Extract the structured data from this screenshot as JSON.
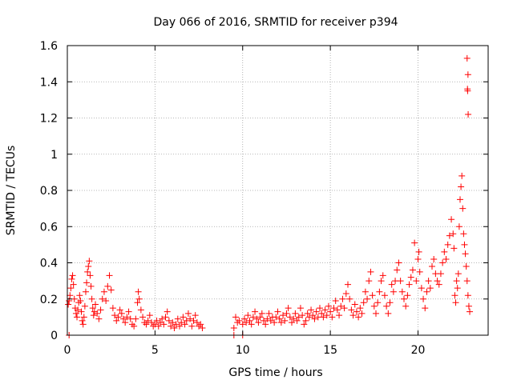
{
  "chart_data": {
    "type": "scatter",
    "title": "Day 066 of 2016, SRMTID for receiver p394",
    "xlabel": "GPS time / hours",
    "ylabel": "SRMTID / TECUs",
    "xlim": [
      0,
      24
    ],
    "ylim": [
      0,
      1.6
    ],
    "xticks": [
      0,
      5,
      10,
      15,
      20
    ],
    "yticks": [
      0,
      0.2,
      0.4,
      0.6,
      0.8,
      1,
      1.2,
      1.4,
      1.6
    ],
    "xtick_labels": [
      "0",
      "5",
      "10",
      "15",
      "20"
    ],
    "ytick_labels": [
      "0",
      "0.2",
      "0.4",
      "0.6",
      "0.8",
      "1",
      "1.2",
      "1.4",
      "1.6"
    ],
    "grid": true,
    "marker": "+",
    "color": "#ff0000",
    "series": [
      {
        "name": "SRMTID",
        "points": [
          [
            0.05,
            0.17
          ],
          [
            0.1,
            0.19
          ],
          [
            0.15,
            0.22
          ],
          [
            0.2,
            0.26
          ],
          [
            0.25,
            0.31
          ],
          [
            0.3,
            0.33
          ],
          [
            0.35,
            0.28
          ],
          [
            0.4,
            0.2
          ],
          [
            0.45,
            0.15
          ],
          [
            0.5,
            0.12
          ],
          [
            0.55,
            0.1
          ],
          [
            0.6,
            0.14
          ],
          [
            0.65,
            0.18
          ],
          [
            0.7,
            0.22
          ],
          [
            0.75,
            0.19
          ],
          [
            0.8,
            0.13
          ],
          [
            0.85,
            0.08
          ],
          [
            0.9,
            0.06
          ],
          [
            0.95,
            0.1
          ],
          [
            1.0,
            0.16
          ],
          [
            1.05,
            0.24
          ],
          [
            1.1,
            0.29
          ],
          [
            1.15,
            0.35
          ],
          [
            1.2,
            0.38
          ],
          [
            1.25,
            0.41
          ],
          [
            1.3,
            0.33
          ],
          [
            1.35,
            0.27
          ],
          [
            1.4,
            0.2
          ],
          [
            1.45,
            0.15
          ],
          [
            1.5,
            0.11
          ],
          [
            1.55,
            0.13
          ],
          [
            1.6,
            0.17
          ],
          [
            1.7,
            0.12
          ],
          [
            1.8,
            0.09
          ],
          [
            1.9,
            0.14
          ],
          [
            2.0,
            0.2
          ],
          [
            2.1,
            0.24
          ],
          [
            2.2,
            0.19
          ],
          [
            2.3,
            0.27
          ],
          [
            2.4,
            0.33
          ],
          [
            2.5,
            0.25
          ],
          [
            2.6,
            0.15
          ],
          [
            2.7,
            0.11
          ],
          [
            2.8,
            0.08
          ],
          [
            2.9,
            0.1
          ],
          [
            3.0,
            0.14
          ],
          [
            3.1,
            0.12
          ],
          [
            3.2,
            0.09
          ],
          [
            3.3,
            0.07
          ],
          [
            3.4,
            0.1
          ],
          [
            3.5,
            0.13
          ],
          [
            3.6,
            0.09
          ],
          [
            3.7,
            0.06
          ],
          [
            3.8,
            0.05
          ],
          [
            3.9,
            0.09
          ],
          [
            4.0,
            0.18
          ],
          [
            4.05,
            0.24
          ],
          [
            4.1,
            0.2
          ],
          [
            4.2,
            0.14
          ],
          [
            4.3,
            0.1
          ],
          [
            4.4,
            0.07
          ],
          [
            4.5,
            0.06
          ],
          [
            4.6,
            0.08
          ],
          [
            4.7,
            0.11
          ],
          [
            4.8,
            0.07
          ],
          [
            4.9,
            0.05
          ],
          [
            5.0,
            0.06
          ],
          [
            5.1,
            0.08
          ],
          [
            5.2,
            0.05
          ],
          [
            5.3,
            0.07
          ],
          [
            5.4,
            0.09
          ],
          [
            5.5,
            0.06
          ],
          [
            5.6,
            0.1
          ],
          [
            5.7,
            0.13
          ],
          [
            5.8,
            0.08
          ],
          [
            5.9,
            0.05
          ],
          [
            6.0,
            0.07
          ],
          [
            6.1,
            0.04
          ],
          [
            6.2,
            0.06
          ],
          [
            6.3,
            0.09
          ],
          [
            6.4,
            0.05
          ],
          [
            6.5,
            0.07
          ],
          [
            6.6,
            0.1
          ],
          [
            6.7,
            0.06
          ],
          [
            6.8,
            0.08
          ],
          [
            6.9,
            0.12
          ],
          [
            7.0,
            0.09
          ],
          [
            7.1,
            0.05
          ],
          [
            7.2,
            0.08
          ],
          [
            7.3,
            0.11
          ],
          [
            7.4,
            0.07
          ],
          [
            7.5,
            0.05
          ],
          [
            7.6,
            0.06
          ],
          [
            7.7,
            0.04
          ],
          [
            0.1,
            0.0
          ],
          [
            9.5,
            0.0
          ],
          [
            10.0,
            0.0
          ],
          [
            9.5,
            0.04
          ],
          [
            9.6,
            0.1
          ],
          [
            9.7,
            0.07
          ],
          [
            9.8,
            0.08
          ],
          [
            10.0,
            0.06
          ],
          [
            10.1,
            0.09
          ],
          [
            10.2,
            0.07
          ],
          [
            10.3,
            0.11
          ],
          [
            10.4,
            0.08
          ],
          [
            10.5,
            0.06
          ],
          [
            10.6,
            0.1
          ],
          [
            10.7,
            0.13
          ],
          [
            10.8,
            0.09
          ],
          [
            10.9,
            0.07
          ],
          [
            11.0,
            0.1
          ],
          [
            11.1,
            0.12
          ],
          [
            11.2,
            0.08
          ],
          [
            11.3,
            0.06
          ],
          [
            11.4,
            0.09
          ],
          [
            11.5,
            0.12
          ],
          [
            11.6,
            0.08
          ],
          [
            11.7,
            0.1
          ],
          [
            11.8,
            0.07
          ],
          [
            11.9,
            0.1
          ],
          [
            12.0,
            0.13
          ],
          [
            12.1,
            0.09
          ],
          [
            12.2,
            0.07
          ],
          [
            12.3,
            0.11
          ],
          [
            12.4,
            0.08
          ],
          [
            12.5,
            0.12
          ],
          [
            12.6,
            0.15
          ],
          [
            12.7,
            0.1
          ],
          [
            12.8,
            0.07
          ],
          [
            12.9,
            0.09
          ],
          [
            13.0,
            0.12
          ],
          [
            13.1,
            0.08
          ],
          [
            13.2,
            0.1
          ],
          [
            13.3,
            0.15
          ],
          [
            13.4,
            0.11
          ],
          [
            13.5,
            0.06
          ],
          [
            13.6,
            0.08
          ],
          [
            13.7,
            0.12
          ],
          [
            13.8,
            0.1
          ],
          [
            13.9,
            0.14
          ],
          [
            14.0,
            0.11
          ],
          [
            14.1,
            0.09
          ],
          [
            14.2,
            0.13
          ],
          [
            14.3,
            0.1
          ],
          [
            14.4,
            0.15
          ],
          [
            14.5,
            0.12
          ],
          [
            14.6,
            0.1
          ],
          [
            14.7,
            0.14
          ],
          [
            14.8,
            0.11
          ],
          [
            14.9,
            0.16
          ],
          [
            15.0,
            0.13
          ],
          [
            15.1,
            0.1
          ],
          [
            15.2,
            0.15
          ],
          [
            15.3,
            0.19
          ],
          [
            15.4,
            0.14
          ],
          [
            15.5,
            0.11
          ],
          [
            15.6,
            0.16
          ],
          [
            15.7,
            0.2
          ],
          [
            15.8,
            0.15
          ],
          [
            15.9,
            0.23
          ],
          [
            16.0,
            0.28
          ],
          [
            16.1,
            0.2
          ],
          [
            16.2,
            0.14
          ],
          [
            16.3,
            0.11
          ],
          [
            16.4,
            0.17
          ],
          [
            16.5,
            0.13
          ],
          [
            16.6,
            0.1
          ],
          [
            16.7,
            0.15
          ],
          [
            16.8,
            0.12
          ],
          [
            16.9,
            0.18
          ],
          [
            17.0,
            0.24
          ],
          [
            17.1,
            0.2
          ],
          [
            17.2,
            0.3
          ],
          [
            17.3,
            0.35
          ],
          [
            17.4,
            0.22
          ],
          [
            17.5,
            0.16
          ],
          [
            17.6,
            0.12
          ],
          [
            17.7,
            0.18
          ],
          [
            17.8,
            0.24
          ],
          [
            17.9,
            0.3
          ],
          [
            18.0,
            0.33
          ],
          [
            18.1,
            0.22
          ],
          [
            18.2,
            0.16
          ],
          [
            18.3,
            0.12
          ],
          [
            18.4,
            0.18
          ],
          [
            18.5,
            0.28
          ],
          [
            18.6,
            0.24
          ],
          [
            18.7,
            0.3
          ],
          [
            18.8,
            0.36
          ],
          [
            18.9,
            0.4
          ],
          [
            19.0,
            0.3
          ],
          [
            19.1,
            0.24
          ],
          [
            19.2,
            0.2
          ],
          [
            19.3,
            0.16
          ],
          [
            19.4,
            0.22
          ],
          [
            19.5,
            0.28
          ],
          [
            19.6,
            0.32
          ],
          [
            19.7,
            0.36
          ],
          [
            19.8,
            0.51
          ],
          [
            19.9,
            0.3
          ],
          [
            20.0,
            0.42
          ],
          [
            20.05,
            0.46
          ],
          [
            20.1,
            0.35
          ],
          [
            20.2,
            0.26
          ],
          [
            20.3,
            0.2
          ],
          [
            20.4,
            0.15
          ],
          [
            20.5,
            0.24
          ],
          [
            20.6,
            0.3
          ],
          [
            20.7,
            0.26
          ],
          [
            20.8,
            0.38
          ],
          [
            20.9,
            0.42
          ],
          [
            21.0,
            0.34
          ],
          [
            21.1,
            0.3
          ],
          [
            21.2,
            0.28
          ],
          [
            21.3,
            0.34
          ],
          [
            21.4,
            0.4
          ],
          [
            21.5,
            0.46
          ],
          [
            21.6,
            0.42
          ],
          [
            21.7,
            0.5
          ],
          [
            21.8,
            0.55
          ],
          [
            21.9,
            0.64
          ],
          [
            22.0,
            0.56
          ],
          [
            22.05,
            0.48
          ],
          [
            22.1,
            0.22
          ],
          [
            22.15,
            0.18
          ],
          [
            22.2,
            0.3
          ],
          [
            22.25,
            0.26
          ],
          [
            22.3,
            0.34
          ],
          [
            22.35,
            0.6
          ],
          [
            22.4,
            0.75
          ],
          [
            22.45,
            0.82
          ],
          [
            22.5,
            0.88
          ],
          [
            22.55,
            0.7
          ],
          [
            22.6,
            0.56
          ],
          [
            22.65,
            0.5
          ],
          [
            22.7,
            0.45
          ],
          [
            22.75,
            0.38
          ],
          [
            22.8,
            0.3
          ],
          [
            22.85,
            0.22
          ],
          [
            22.9,
            0.16
          ],
          [
            22.95,
            0.13
          ],
          [
            22.8,
            1.53
          ],
          [
            22.85,
            1.44
          ],
          [
            22.82,
            1.36
          ],
          [
            22.83,
            1.35
          ],
          [
            22.86,
            1.22
          ]
        ]
      }
    ]
  }
}
